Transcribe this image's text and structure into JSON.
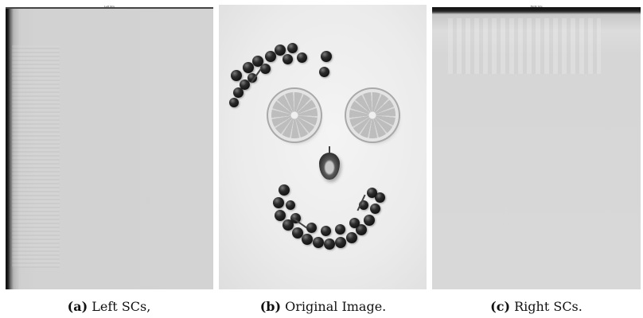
{
  "figure": {
    "panels": [
      {
        "id": "a",
        "tag": "(a)",
        "caption": "Left SCs,",
        "tiny_title": "Left SCs"
      },
      {
        "id": "b",
        "tag": "(b)",
        "caption": "Original Image."
      },
      {
        "id": "c",
        "tag": "(c)",
        "caption": "Right SCs.",
        "tiny_title": "Right SCs"
      }
    ]
  }
}
